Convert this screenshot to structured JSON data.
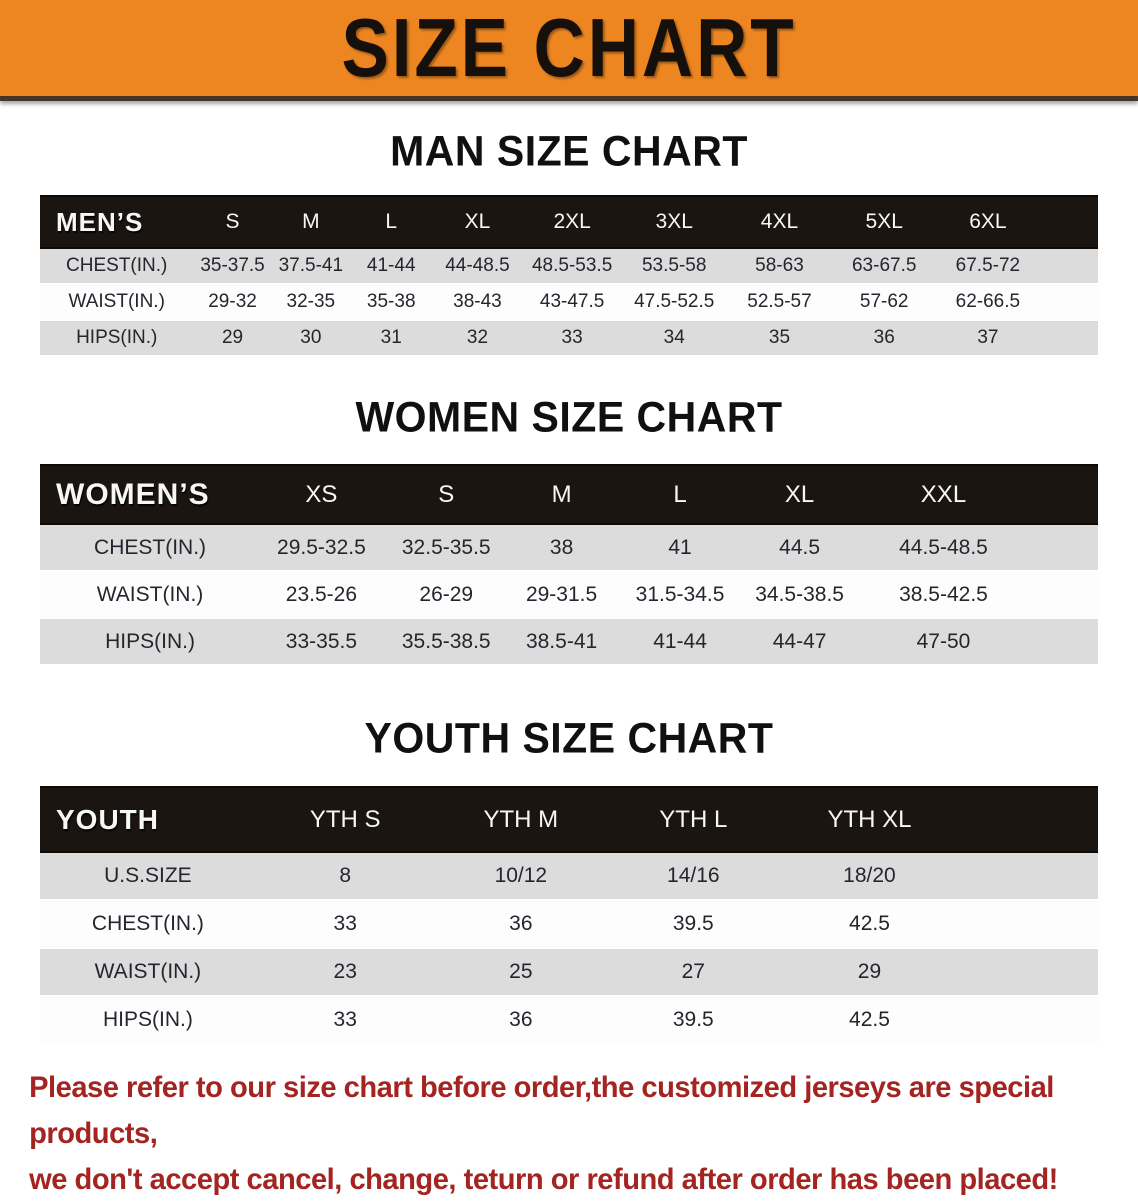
{
  "banner": {
    "title": "SIZE CHART"
  },
  "sections": [
    {
      "heading": "MAN SIZE CHART",
      "table": {
        "label": "MEN’S",
        "columns": [
          "S",
          "M",
          "L",
          "XL",
          "2XL",
          "3XL",
          "4XL",
          "5XL",
          "6XL"
        ],
        "rows": [
          {
            "label": "CHEST(IN.)",
            "values": [
              "35-37.5",
              "37.5-41",
              "41-44",
              "44-48.5",
              "48.5-53.5",
              "53.5-58",
              "58-63",
              "63-67.5",
              "67.5-72"
            ]
          },
          {
            "label": "WAIST(IN.)",
            "values": [
              "29-32",
              "32-35",
              "35-38",
              "38-43",
              "43-47.5",
              "47.5-52.5",
              "52.5-57",
              "57-62",
              "62-66.5"
            ]
          },
          {
            "label": "HIPS(IN.)",
            "values": [
              "29",
              "30",
              "31",
              "32",
              "33",
              "34",
              "35",
              "36",
              "37"
            ]
          }
        ]
      }
    },
    {
      "heading": "WOMEN SIZE CHART",
      "table": {
        "label": "WOMEN’S",
        "columns": [
          "XS",
          "S",
          "M",
          "L",
          "XL",
          "XXL"
        ],
        "rows": [
          {
            "label": "CHEST(IN.)",
            "values": [
              "29.5-32.5",
              "32.5-35.5",
              "38",
              "41",
              "44.5",
              "44.5-48.5"
            ]
          },
          {
            "label": "WAIST(IN.)",
            "values": [
              "23.5-26",
              "26-29",
              "29-31.5",
              "31.5-34.5",
              "34.5-38.5",
              "38.5-42.5"
            ]
          },
          {
            "label": "HIPS(IN.)",
            "values": [
              "33-35.5",
              "35.5-38.5",
              "38.5-41",
              "41-44",
              "44-47",
              "47-50"
            ]
          }
        ]
      }
    },
    {
      "heading": "YOUTH SIZE CHART",
      "table": {
        "label": "YOUTH",
        "columns": [
          "YTH S",
          "YTH M",
          "YTH L",
          "YTH XL"
        ],
        "rows": [
          {
            "label": "U.S.SIZE",
            "values": [
              "8",
              "10/12",
              "14/16",
              "18/20"
            ]
          },
          {
            "label": "CHEST(IN.)",
            "values": [
              "33",
              "36",
              "39.5",
              "42.5"
            ]
          },
          {
            "label": "WAIST(IN.)",
            "values": [
              "23",
              "25",
              "27",
              "29"
            ]
          },
          {
            "label": "HIPS(IN.)",
            "values": [
              "33",
              "36",
              "39.5",
              "42.5"
            ]
          }
        ]
      }
    }
  ],
  "disclaimer": {
    "line1": "Please refer to our size chart before order,the customized jerseys are special products,",
    "line2": "we don't accept cancel, change, teturn or refund after order has been placed!"
  },
  "colors": {
    "banner_orange": "#ED8621",
    "banner_text": "#16100C",
    "table_header_bg": "#1B1512",
    "table_header_text": "#F7F7F5",
    "row_gray": "#DCDCDC",
    "row_white": "#FDFDFD",
    "cell_text": "#25252E",
    "disclaimer_red": "#A32421"
  }
}
